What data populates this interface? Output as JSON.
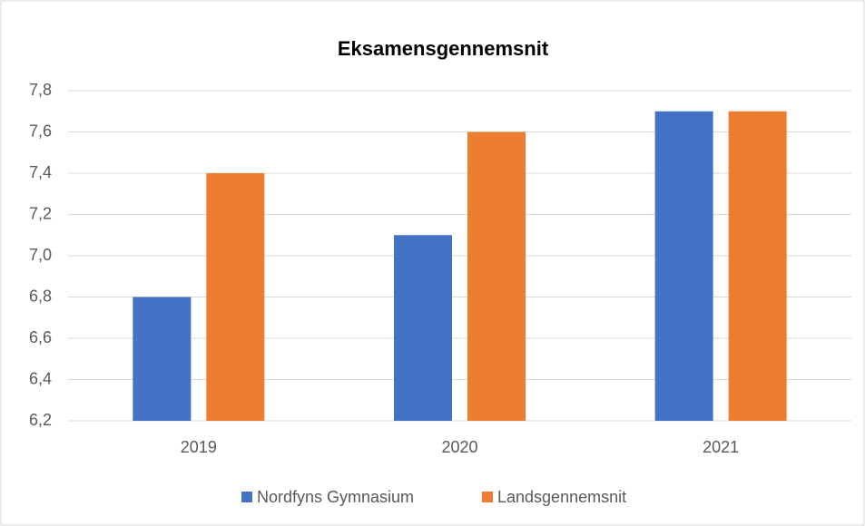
{
  "chart_data": {
    "type": "bar",
    "title": "Eksamensgennemsnit",
    "categories": [
      "2019",
      "2020",
      "2021"
    ],
    "series": [
      {
        "name": "Nordfyns Gymnasium",
        "color": "#4472c4",
        "values": [
          6.8,
          7.1,
          7.7
        ]
      },
      {
        "name": "Landsgennemsnit",
        "color": "#ed7d31",
        "values": [
          7.4,
          7.6,
          7.7
        ]
      }
    ],
    "ylim": [
      6.2,
      7.8
    ],
    "yticks": [
      {
        "value": 6.2,
        "label": "6,2"
      },
      {
        "value": 6.4,
        "label": "6,4"
      },
      {
        "value": 6.6,
        "label": "6,6"
      },
      {
        "value": 6.8,
        "label": "6,8"
      },
      {
        "value": 7.0,
        "label": "7,0"
      },
      {
        "value": 7.2,
        "label": "7,2"
      },
      {
        "value": 7.4,
        "label": "7,4"
      },
      {
        "value": 7.6,
        "label": "7,6"
      },
      {
        "value": 7.8,
        "label": "7,8"
      }
    ],
    "grid": true,
    "legend": "bottom"
  }
}
